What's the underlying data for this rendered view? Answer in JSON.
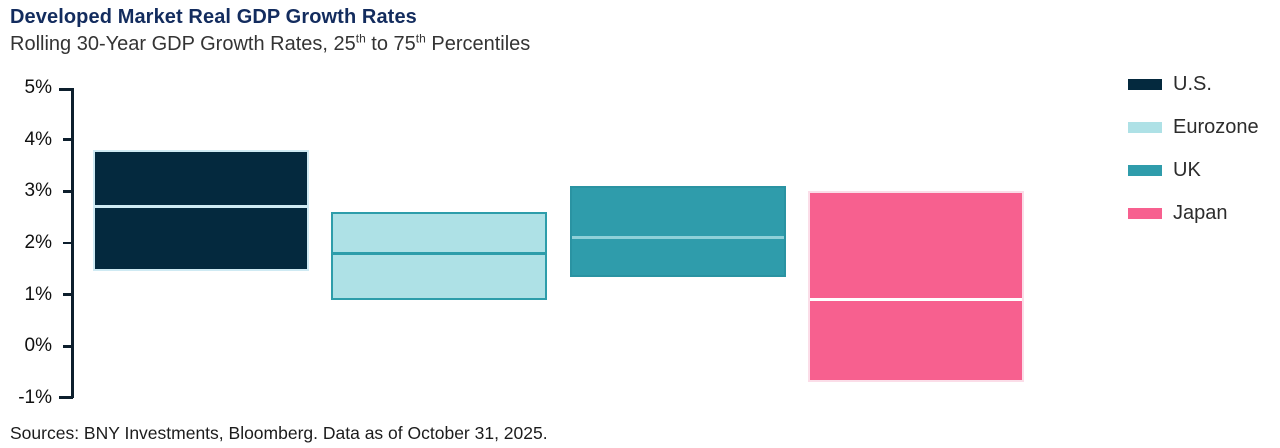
{
  "header": {
    "title": "Developed Market Real GDP Growth Rates",
    "subtitle_parts": [
      {
        "text": "Rolling 30-Year GDP Growth Rates, 25",
        "sup": false
      },
      {
        "text": "th",
        "sup": true
      },
      {
        "text": " to 75",
        "sup": false
      },
      {
        "text": "th",
        "sup": true
      },
      {
        "text": " Percentiles",
        "sup": false
      }
    ]
  },
  "chart_data": {
    "type": "bar",
    "subtype": "floating-percentile-range-columns",
    "title": "Developed Market Real GDP Growth Rates",
    "subtitle": "Rolling 30-Year GDP Growth Rates, 25th to 75th Percentiles",
    "unit": "%",
    "ylim": [
      -1,
      5
    ],
    "grid": false,
    "yticks": [
      {
        "value": 5,
        "label": "5%"
      },
      {
        "value": 4,
        "label": "4%"
      },
      {
        "value": 3,
        "label": "3%"
      },
      {
        "value": 2,
        "label": "2%"
      },
      {
        "value": 1,
        "label": "1%"
      },
      {
        "value": 0,
        "label": "0%"
      },
      {
        "value": -1,
        "label": "-1%"
      }
    ],
    "categories": [
      "U.S.",
      "Eurozone",
      "UK",
      "Japan"
    ],
    "series": [
      {
        "name": "U.S.",
        "p25": 1.45,
        "median": 2.7,
        "p75": 3.8,
        "fill": "#04293e",
        "border": "#cfeaf3",
        "median_line": "#cfeaf3"
      },
      {
        "name": "Eurozone",
        "p25": 0.9,
        "median": 1.8,
        "p75": 2.6,
        "fill": "#aee1e6",
        "border": "#2d9daa",
        "median_line": "#2d9daa"
      },
      {
        "name": "UK",
        "p25": 1.35,
        "median": 2.1,
        "p75": 3.1,
        "fill": "#2f9cab",
        "border": "#2a93a2",
        "median_line": "#8ed0d8"
      },
      {
        "name": "Japan",
        "p25": -0.7,
        "median": 0.9,
        "p75": 3.0,
        "fill": "#f7608f",
        "border": "#fbdde8",
        "median_line": "#ffffff"
      }
    ],
    "legend": {
      "position": "right",
      "items": [
        "U.S.",
        "Eurozone",
        "UK",
        "Japan"
      ]
    }
  },
  "legend": {
    "items": [
      {
        "label": "U.S.",
        "color": "#04293e"
      },
      {
        "label": "Eurozone",
        "color": "#aee1e6"
      },
      {
        "label": "UK",
        "color": "#2f9cab"
      },
      {
        "label": "Japan",
        "color": "#f7608f"
      }
    ]
  },
  "footer": {
    "source": "Sources: BNY Investments, Bloomberg. Data as of October 31, 2025."
  },
  "colors": {
    "title": "#132c5e",
    "axis": "#0d1f2d"
  }
}
